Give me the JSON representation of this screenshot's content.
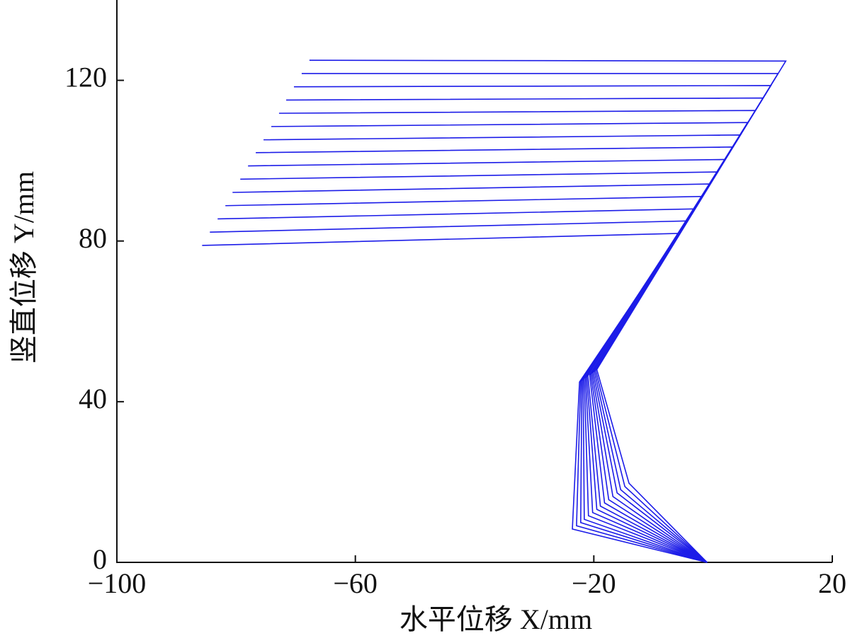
{
  "chart_data": {
    "type": "line",
    "xlabel": "水平位移 X/mm",
    "ylabel": "竖直位移 Y/mm",
    "xlim": [
      -100,
      20
    ],
    "ylim": [
      0,
      140
    ],
    "xticks": [
      {
        "value": -100,
        "label": "−100"
      },
      {
        "value": -60,
        "label": "−60"
      },
      {
        "value": -20,
        "label": "−20"
      },
      20
    ],
    "yticks": [
      0,
      40,
      80,
      120
    ],
    "grid": false,
    "series": [
      {
        "color": "#1c1ce8",
        "x": [
          -1,
          -23.6,
          -22.4,
          -5.6,
          -85.7
        ],
        "values": [
          0,
          8.3,
          44.9,
          81.9,
          78.9
        ]
      },
      {
        "color": "#1c1ce8",
        "x": [
          -1,
          -22.9,
          -22.2,
          -4.3,
          -84.4
        ],
        "values": [
          0,
          9.1,
          45.1,
          85.0,
          82.2
        ]
      },
      {
        "color": "#1c1ce8",
        "x": [
          -1,
          -22.2,
          -22.0,
          -3.1,
          -83.1
        ],
        "values": [
          0,
          9.9,
          45.3,
          88.0,
          85.5
        ]
      },
      {
        "color": "#1c1ce8",
        "x": [
          -1,
          -21.6,
          -21.8,
          -1.8,
          -81.8
        ],
        "values": [
          0,
          10.7,
          45.6,
          91.1,
          88.8
        ]
      },
      {
        "color": "#1c1ce8",
        "x": [
          -1,
          -20.9,
          -21.6,
          -0.5,
          -80.6
        ],
        "values": [
          0,
          11.6,
          45.8,
          94.2,
          92.1
        ]
      },
      {
        "color": "#1c1ce8",
        "x": [
          -1,
          -20.2,
          -21.4,
          0.8,
          -79.3
        ],
        "values": [
          0,
          12.4,
          46.0,
          97.2,
          95.4
        ]
      },
      {
        "color": "#1c1ce8",
        "x": [
          -1,
          -19.5,
          -21.2,
          2.0,
          -78.0
        ],
        "values": [
          0,
          13.2,
          46.2,
          100.3,
          98.7
        ]
      },
      {
        "color": "#1c1ce8",
        "x": [
          -1,
          -18.9,
          -21.0,
          3.3,
          -76.7
        ],
        "values": [
          0,
          14.0,
          46.5,
          103.4,
          102.0
        ]
      },
      {
        "color": "#1c1ce8",
        "x": [
          -1,
          -18.2,
          -20.7,
          4.6,
          -75.4
        ],
        "values": [
          0,
          14.8,
          46.7,
          106.4,
          105.2
        ]
      },
      {
        "color": "#1c1ce8",
        "x": [
          -1,
          -17.5,
          -20.5,
          5.8,
          -74.1
        ],
        "values": [
          0,
          15.6,
          46.9,
          109.5,
          108.5
        ]
      },
      {
        "color": "#1c1ce8",
        "x": [
          -1,
          -16.8,
          -20.3,
          7.1,
          -72.8
        ],
        "values": [
          0,
          16.4,
          47.1,
          112.5,
          111.8
        ]
      },
      {
        "color": "#1c1ce8",
        "x": [
          -1,
          -16.1,
          -20.1,
          8.4,
          -71.6
        ],
        "values": [
          0,
          17.3,
          47.3,
          115.6,
          115.1
        ]
      },
      {
        "color": "#1c1ce8",
        "x": [
          -1,
          -15.5,
          -19.9,
          9.7,
          -70.3
        ],
        "values": [
          0,
          18.1,
          47.6,
          118.7,
          118.4
        ]
      },
      {
        "color": "#1c1ce8",
        "x": [
          -1,
          -14.8,
          -19.7,
          10.9,
          -69.0
        ],
        "values": [
          0,
          18.9,
          47.8,
          121.7,
          121.7
        ]
      },
      {
        "color": "#1c1ce8",
        "x": [
          -1,
          -14.1,
          -19.5,
          12.2,
          -67.7
        ],
        "values": [
          0,
          19.7,
          48.0,
          124.8,
          125.0
        ]
      }
    ]
  }
}
